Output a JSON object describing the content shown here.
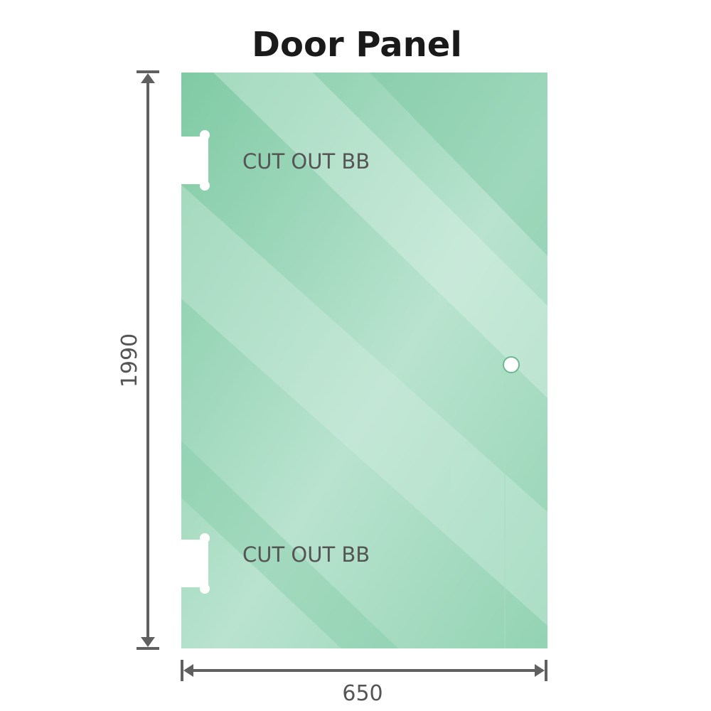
{
  "title": "Door Panel",
  "panel": {
    "color": "#8fd1b0",
    "cutouts": [
      {
        "label": "CUT OUT BB"
      },
      {
        "label": "CUT OUT BB"
      }
    ],
    "handle_hole": true
  },
  "dimensions": {
    "height": "1990",
    "width": "650",
    "line_color": "#606060"
  }
}
